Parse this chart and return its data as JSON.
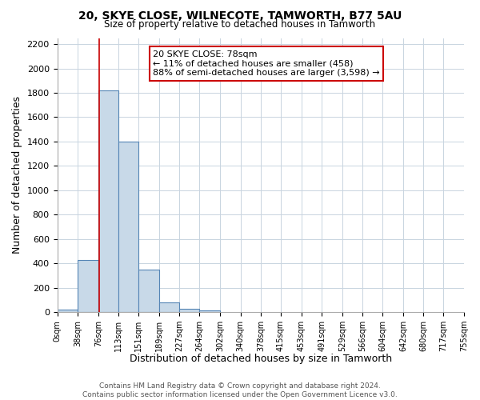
{
  "title": "20, SKYE CLOSE, WILNECOTE, TAMWORTH, B77 5AU",
  "subtitle": "Size of property relative to detached houses in Tamworth",
  "xlabel": "Distribution of detached houses by size in Tamworth",
  "ylabel": "Number of detached properties",
  "bin_edges": [
    0,
    38,
    76,
    113,
    151,
    189,
    227,
    264,
    302,
    340,
    378,
    415,
    453,
    491,
    529,
    566,
    604,
    642,
    680,
    717,
    755
  ],
  "bin_labels": [
    "0sqm",
    "38sqm",
    "76sqm",
    "113sqm",
    "151sqm",
    "189sqm",
    "227sqm",
    "264sqm",
    "302sqm",
    "340sqm",
    "378sqm",
    "415sqm",
    "453sqm",
    "491sqm",
    "529sqm",
    "566sqm",
    "604sqm",
    "642sqm",
    "680sqm",
    "717sqm",
    "755sqm"
  ],
  "bar_heights": [
    20,
    430,
    1820,
    1400,
    350,
    80,
    25,
    10,
    0,
    0,
    0,
    0,
    0,
    0,
    0,
    0,
    0,
    0,
    0,
    0
  ],
  "bar_color": "#c8d9e8",
  "bar_edge_color": "#5585b5",
  "property_line_x": 78,
  "property_line_color": "#cc0000",
  "annotation_title": "20 SKYE CLOSE: 78sqm",
  "annotation_line1": "← 11% of detached houses are smaller (458)",
  "annotation_line2": "88% of semi-detached houses are larger (3,598) →",
  "annotation_box_color": "#ffffff",
  "annotation_box_edge": "#cc0000",
  "ylim": [
    0,
    2250
  ],
  "yticks": [
    0,
    200,
    400,
    600,
    800,
    1000,
    1200,
    1400,
    1600,
    1800,
    2000,
    2200
  ],
  "footer_line1": "Contains HM Land Registry data © Crown copyright and database right 2024.",
  "footer_line2": "Contains public sector information licensed under the Open Government Licence v3.0.",
  "bg_color": "#ffffff",
  "grid_color": "#c8d4e0"
}
